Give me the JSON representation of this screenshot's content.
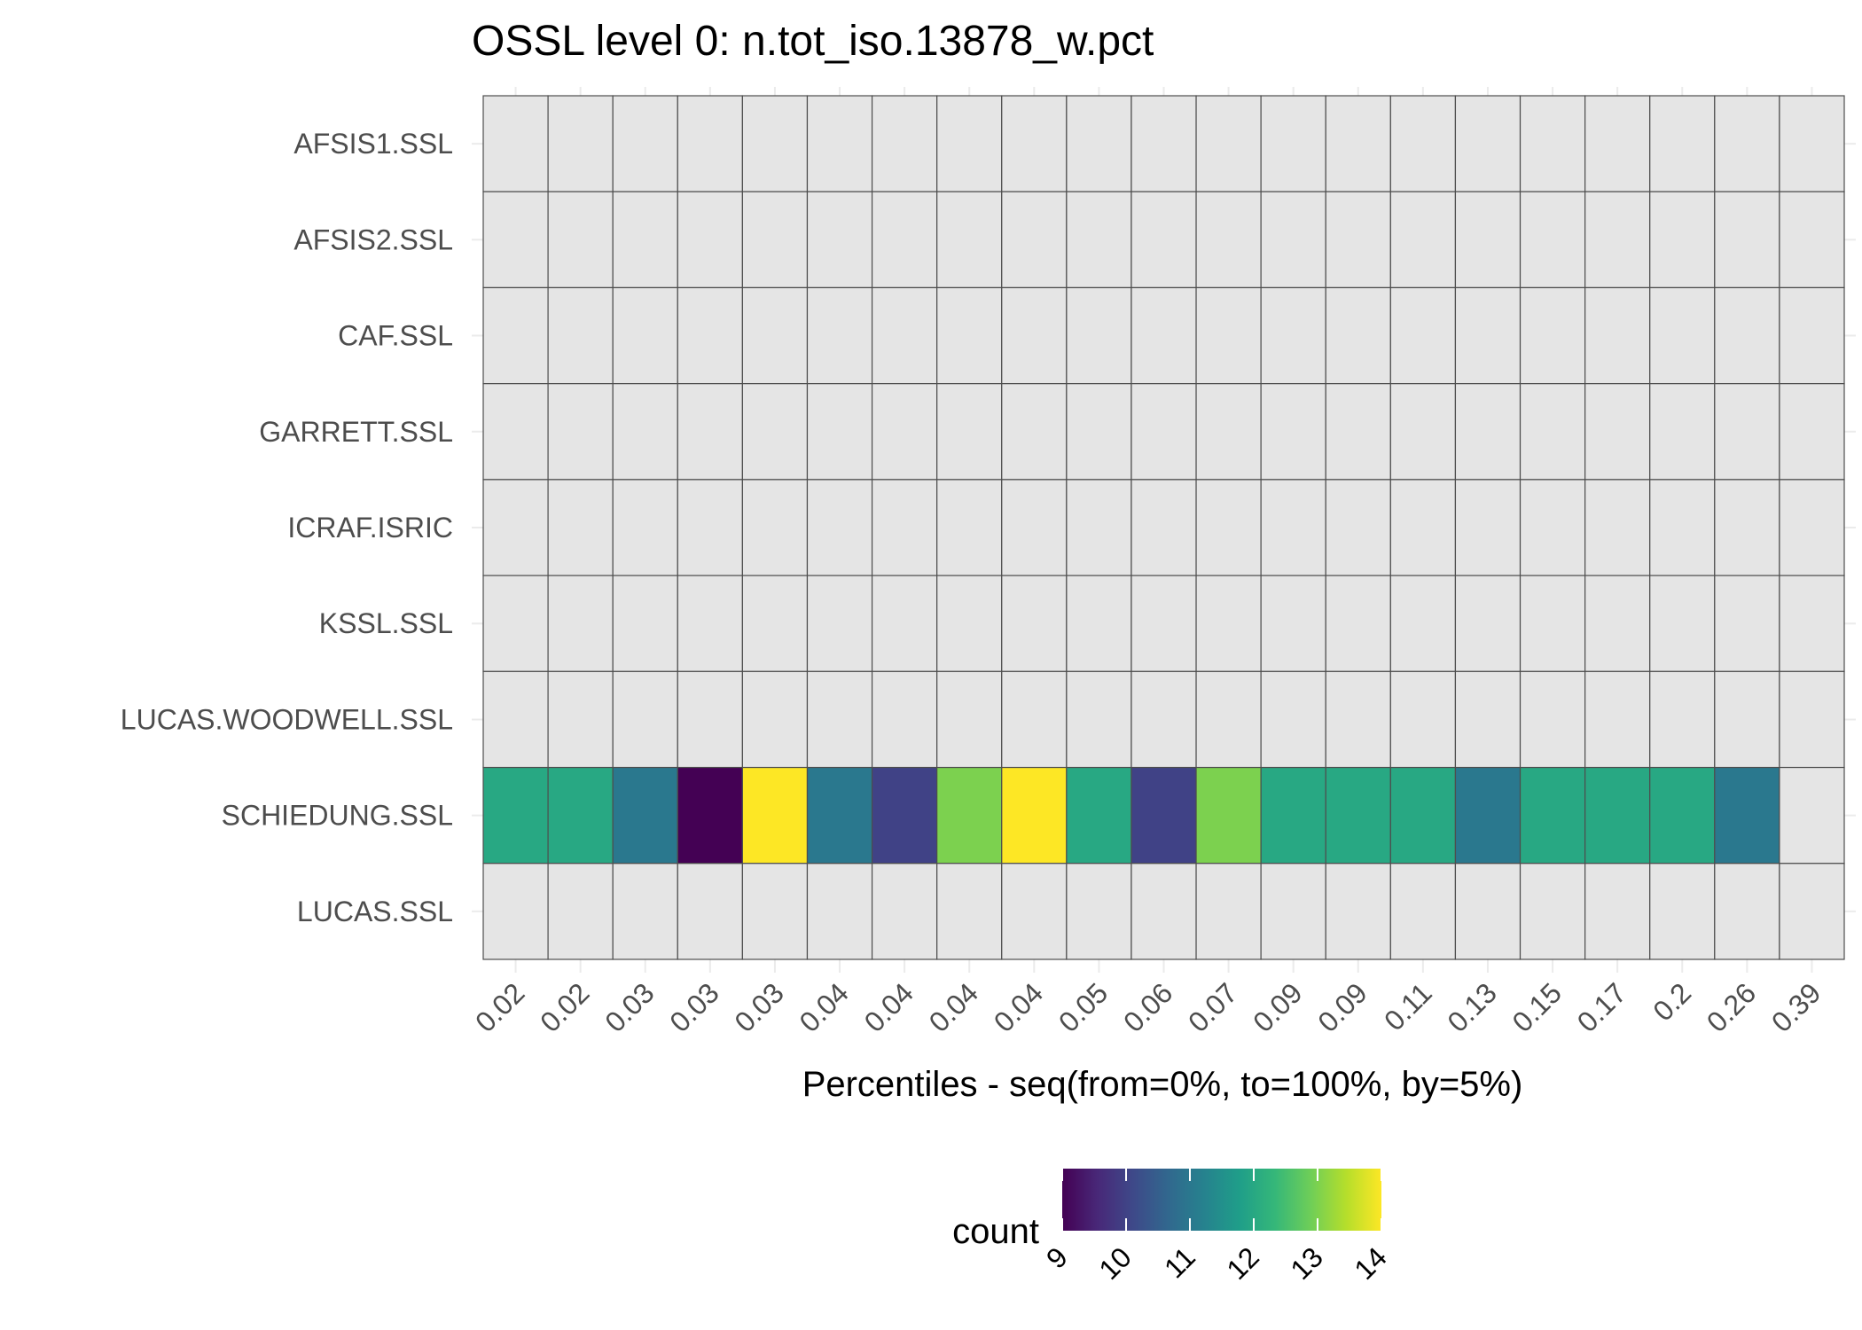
{
  "chart_data": {
    "type": "heatmap",
    "title": "OSSL level 0: n.tot_iso.13878_w.pct",
    "xlabel": "Percentiles - seq(from=0%, to=100%, by=5%)",
    "ylabel": "",
    "x_categories": [
      "0.02",
      "0.02",
      "0.03",
      "0.03",
      "0.03",
      "0.04",
      "0.04",
      "0.04",
      "0.04",
      "0.05",
      "0.06",
      "0.07",
      "0.09",
      "0.09",
      "0.11",
      "0.13",
      "0.15",
      "0.17",
      "0.2",
      "0.26",
      "0.39"
    ],
    "y_categories": [
      "AFSIS1.SSL",
      "AFSIS2.SSL",
      "CAF.SSL",
      "GARRETT.SSL",
      "ICRAF.ISRIC",
      "KSSL.SSL",
      "LUCAS.WOODWELL.SSL",
      "SCHIEDUNG.SSL",
      "LUCAS.SSL"
    ],
    "values": [
      [
        null,
        null,
        null,
        null,
        null,
        null,
        null,
        null,
        null,
        null,
        null,
        null,
        null,
        null,
        null,
        null,
        null,
        null,
        null,
        null,
        null
      ],
      [
        null,
        null,
        null,
        null,
        null,
        null,
        null,
        null,
        null,
        null,
        null,
        null,
        null,
        null,
        null,
        null,
        null,
        null,
        null,
        null,
        null
      ],
      [
        null,
        null,
        null,
        null,
        null,
        null,
        null,
        null,
        null,
        null,
        null,
        null,
        null,
        null,
        null,
        null,
        null,
        null,
        null,
        null,
        null
      ],
      [
        null,
        null,
        null,
        null,
        null,
        null,
        null,
        null,
        null,
        null,
        null,
        null,
        null,
        null,
        null,
        null,
        null,
        null,
        null,
        null,
        null
      ],
      [
        null,
        null,
        null,
        null,
        null,
        null,
        null,
        null,
        null,
        null,
        null,
        null,
        null,
        null,
        null,
        null,
        null,
        null,
        null,
        null,
        null
      ],
      [
        null,
        null,
        null,
        null,
        null,
        null,
        null,
        null,
        null,
        null,
        null,
        null,
        null,
        null,
        null,
        null,
        null,
        null,
        null,
        null,
        null
      ],
      [
        null,
        null,
        null,
        null,
        null,
        null,
        null,
        null,
        null,
        null,
        null,
        null,
        null,
        null,
        null,
        null,
        null,
        null,
        null,
        null,
        null
      ],
      [
        12,
        12,
        11,
        9,
        14,
        11,
        10,
        13,
        14,
        12,
        10,
        13,
        12,
        12,
        12,
        11,
        12,
        12,
        12,
        11,
        null
      ],
      [
        null,
        null,
        null,
        null,
        null,
        null,
        null,
        null,
        null,
        null,
        null,
        null,
        null,
        null,
        null,
        null,
        null,
        null,
        null,
        null,
        null
      ]
    ],
    "na_color": "#e5e5e5",
    "color_scale": {
      "name": "viridis",
      "min": 9,
      "max": 14,
      "stops": [
        "#440154",
        "#482878",
        "#3e4989",
        "#31688e",
        "#26828e",
        "#1f9e89",
        "#35b779",
        "#6ece58",
        "#b5de2b",
        "#fde725"
      ]
    },
    "legend": {
      "title": "count",
      "ticks": [
        "9",
        "10",
        "11",
        "12",
        "13",
        "14"
      ],
      "position": "bottom"
    }
  }
}
